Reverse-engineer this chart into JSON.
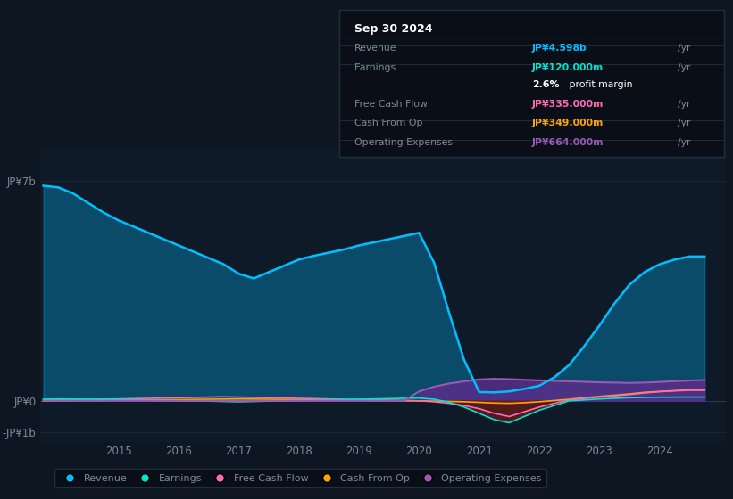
{
  "background_color": "#0e1621",
  "plot_bg_color": "#0e1a27",
  "grid_color": "#1a2a3a",
  "text_color": "#7a8a9a",
  "ylim": [
    -1300000000.0,
    8000000000.0
  ],
  "xlim_start": 2013.7,
  "xlim_end": 2025.1,
  "years": [
    2013.75,
    2014.0,
    2014.25,
    2014.5,
    2014.75,
    2015.0,
    2015.25,
    2015.5,
    2015.75,
    2016.0,
    2016.25,
    2016.5,
    2016.75,
    2017.0,
    2017.25,
    2017.5,
    2017.75,
    2018.0,
    2018.25,
    2018.5,
    2018.75,
    2019.0,
    2019.25,
    2019.5,
    2019.75,
    2020.0,
    2020.25,
    2020.5,
    2020.75,
    2021.0,
    2021.25,
    2021.5,
    2021.75,
    2022.0,
    2022.25,
    2022.5,
    2022.75,
    2023.0,
    2023.25,
    2023.5,
    2023.75,
    2024.0,
    2024.25,
    2024.5,
    2024.75
  ],
  "revenue": [
    6850000000.0,
    6800000000.0,
    6600000000.0,
    6300000000.0,
    6000000000.0,
    5750000000.0,
    5550000000.0,
    5350000000.0,
    5150000000.0,
    4950000000.0,
    4750000000.0,
    4550000000.0,
    4350000000.0,
    4050000000.0,
    3900000000.0,
    4100000000.0,
    4300000000.0,
    4500000000.0,
    4620000000.0,
    4720000000.0,
    4820000000.0,
    4950000000.0,
    5050000000.0,
    5150000000.0,
    5250000000.0,
    5350000000.0,
    4400000000.0,
    2800000000.0,
    1300000000.0,
    280000000.0,
    270000000.0,
    300000000.0,
    380000000.0,
    480000000.0,
    750000000.0,
    1150000000.0,
    1750000000.0,
    2400000000.0,
    3100000000.0,
    3700000000.0,
    4100000000.0,
    4350000000.0,
    4500000000.0,
    4598000000.0,
    4598000000.0
  ],
  "earnings": [
    50000000.0,
    60000000.0,
    55000000.0,
    50000000.0,
    45000000.0,
    40000000.0,
    30000000.0,
    20000000.0,
    10000000.0,
    0,
    -5000000.0,
    -10000000.0,
    -20000000.0,
    -30000000.0,
    -20000000.0,
    -10000000.0,
    0,
    10000000.0,
    20000000.0,
    30000000.0,
    40000000.0,
    50000000.0,
    60000000.0,
    70000000.0,
    80000000.0,
    90000000.0,
    50000000.0,
    -50000000.0,
    -200000000.0,
    -400000000.0,
    -600000000.0,
    -700000000.0,
    -500000000.0,
    -300000000.0,
    -150000000.0,
    0,
    30000000.0,
    60000000.0,
    80000000.0,
    100000000.0,
    110000000.0,
    115000000.0,
    118000000.0,
    120000000.0,
    120000000.0
  ],
  "fcf": [
    30000000.0,
    40000000.0,
    45000000.0,
    50000000.0,
    55000000.0,
    60000000.0,
    70000000.0,
    80000000.0,
    90000000.0,
    100000000.0,
    110000000.0,
    120000000.0,
    130000000.0,
    120000000.0,
    110000000.0,
    100000000.0,
    90000000.0,
    80000000.0,
    70000000.0,
    60000000.0,
    50000000.0,
    40000000.0,
    30000000.0,
    20000000.0,
    10000000.0,
    0,
    -30000000.0,
    -80000000.0,
    -150000000.0,
    -250000000.0,
    -400000000.0,
    -500000000.0,
    -350000000.0,
    -200000000.0,
    -80000000.0,
    30000000.0,
    80000000.0,
    120000000.0,
    160000000.0,
    200000000.0,
    250000000.0,
    290000000.0,
    315000000.0,
    335000000.0,
    335000000.0
  ],
  "cashop": [
    -10000000.0,
    0,
    5000000.0,
    10000000.0,
    15000000.0,
    20000000.0,
    25000000.0,
    30000000.0,
    35000000.0,
    40000000.0,
    45000000.0,
    50000000.0,
    55000000.0,
    60000000.0,
    55000000.0,
    50000000.0,
    45000000.0,
    40000000.0,
    35000000.0,
    30000000.0,
    25000000.0,
    20000000.0,
    15000000.0,
    10000000.0,
    5000000.0,
    0,
    -10000000.0,
    -20000000.0,
    -30000000.0,
    -50000000.0,
    -70000000.0,
    -80000000.0,
    -60000000.0,
    -30000000.0,
    10000000.0,
    50000000.0,
    100000000.0,
    140000000.0,
    180000000.0,
    220000000.0,
    270000000.0,
    300000000.0,
    325000000.0,
    349000000.0,
    349000000.0
  ],
  "opex": [
    0,
    0,
    0,
    0,
    0,
    0,
    0,
    0,
    0,
    0,
    0,
    0,
    0,
    0,
    0,
    0,
    0,
    0,
    0,
    0,
    0,
    0,
    0,
    0,
    0,
    300000000.0,
    450000000.0,
    550000000.0,
    620000000.0,
    680000000.0,
    700000000.0,
    690000000.0,
    670000000.0,
    650000000.0,
    635000000.0,
    620000000.0,
    605000000.0,
    590000000.0,
    580000000.0,
    570000000.0,
    580000000.0,
    600000000.0,
    625000000.0,
    645000000.0,
    664000000.0
  ],
  "ytick_positions": [
    0,
    7000000000.0,
    -1000000000.0
  ],
  "ytick_labels": [
    "JP¥0",
    "JP¥7b",
    "-JP¥1b"
  ],
  "xtick_positions": [
    2015,
    2016,
    2017,
    2018,
    2019,
    2020,
    2021,
    2022,
    2023,
    2024
  ],
  "legend_labels": [
    "Revenue",
    "Earnings",
    "Free Cash Flow",
    "Cash From Op",
    "Operating Expenses"
  ],
  "legend_colors": [
    "#00bfff",
    "#00e5cc",
    "#ff69b4",
    "#ffa500",
    "#9b59b6"
  ],
  "color_revenue": "#00bfff",
  "color_earnings": "#00e5cc",
  "color_fcf": "#ff69b4",
  "color_cashop": "#ffa500",
  "color_opex": "#9b59b6",
  "color_opex_fill": "#5a2d8a",
  "color_earnings_neg_fill": "#6b1a1a",
  "info_title": "Sep 30 2024",
  "info_rows": [
    {
      "label": "Revenue",
      "value": "JP¥4.598b",
      "unit": "/yr",
      "color": "#00bfff"
    },
    {
      "label": "Earnings",
      "value": "JP¥120.000m",
      "unit": "/yr",
      "color": "#00e5cc"
    },
    {
      "label": "",
      "value": "2.6%",
      "unit": " profit margin",
      "color": "#ffffff"
    },
    {
      "label": "Free Cash Flow",
      "value": "JP¥335.000m",
      "unit": "/yr",
      "color": "#ff69b4"
    },
    {
      "label": "Cash From Op",
      "value": "JP¥349.000m",
      "unit": "/yr",
      "color": "#ffa500"
    },
    {
      "label": "Operating Expenses",
      "value": "JP¥664.000m",
      "unit": "/yr",
      "color": "#9b59b6"
    }
  ]
}
